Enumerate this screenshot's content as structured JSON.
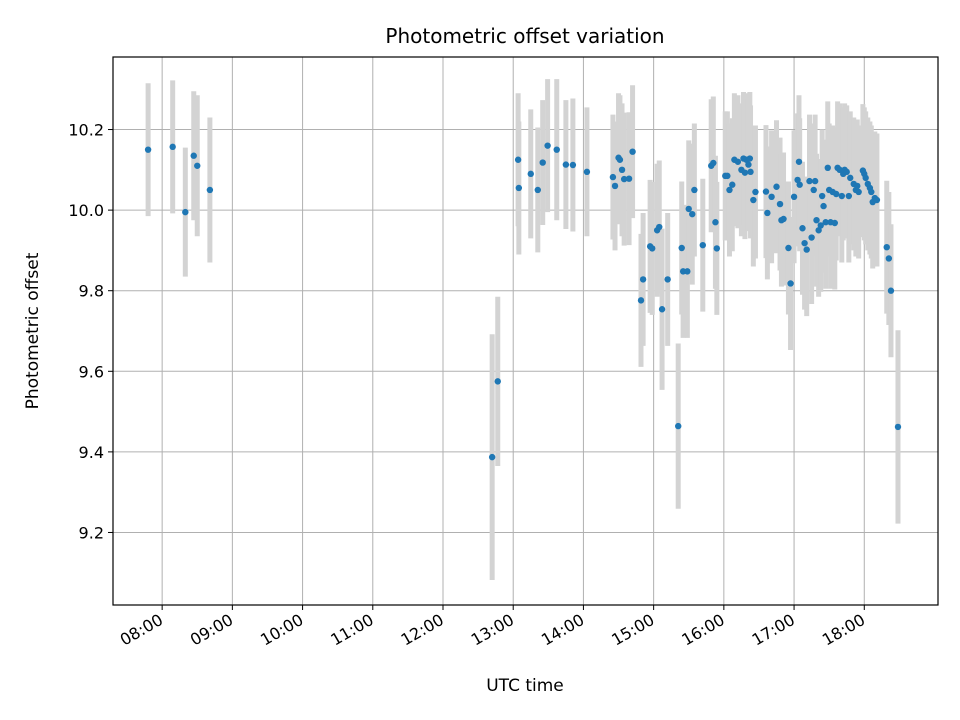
{
  "chart_data": {
    "type": "scatter",
    "title": "Photometric offset variation",
    "xlabel": "UTC time",
    "ylabel": "Photometric offset",
    "x_tick_labels": [
      "08:00",
      "09:00",
      "10:00",
      "11:00",
      "12:00",
      "13:00",
      "14:00",
      "15:00",
      "16:00",
      "17:00",
      "18:00"
    ],
    "y_tick_labels": [
      "9.2",
      "9.4",
      "9.6",
      "9.8",
      "10.0",
      "10.2"
    ],
    "x_ticks_hours": [
      8,
      9,
      10,
      11,
      12,
      13,
      14,
      15,
      16,
      17,
      18
    ],
    "y_ticks": [
      9.2,
      9.4,
      9.6,
      9.8,
      10.0,
      10.2
    ],
    "xlim_hours": [
      7.3,
      19.05
    ],
    "ylim": [
      9.02,
      10.38
    ],
    "grid": true,
    "colors": {
      "point": "#1f77b4",
      "errorbar": "#d3d3d3",
      "grid": "#b0b0b0"
    },
    "series": [
      {
        "points": [
          [
            7.8,
            10.15,
            0.165
          ],
          [
            8.15,
            10.157,
            0.165
          ],
          [
            8.33,
            9.995,
            0.16
          ],
          [
            8.45,
            10.135,
            0.16
          ],
          [
            8.5,
            10.11,
            0.175
          ],
          [
            8.68,
            10.05,
            0.18
          ],
          [
            12.7,
            9.387,
            0.305
          ],
          [
            12.78,
            9.575,
            0.21
          ],
          [
            13.07,
            10.125,
            0.165
          ],
          [
            13.08,
            10.055,
            0.165
          ],
          [
            13.25,
            10.09,
            0.16
          ],
          [
            13.35,
            10.05,
            0.155
          ],
          [
            13.42,
            10.118,
            0.155
          ],
          [
            13.49,
            10.16,
            0.165
          ],
          [
            13.62,
            10.15,
            0.175
          ],
          [
            13.75,
            10.113,
            0.16
          ],
          [
            13.85,
            10.112,
            0.165
          ],
          [
            14.05,
            10.095,
            0.16
          ],
          [
            14.42,
            10.082,
            0.155
          ],
          [
            14.45,
            10.06,
            0.16
          ],
          [
            14.5,
            10.13,
            0.16
          ],
          [
            14.52,
            10.125,
            0.16
          ],
          [
            14.55,
            10.1,
            0.165
          ],
          [
            14.58,
            10.077,
            0.165
          ],
          [
            14.65,
            10.078,
            0.165
          ],
          [
            14.7,
            10.145,
            0.165
          ],
          [
            14.82,
            9.776,
            0.165
          ],
          [
            14.85,
            9.828,
            0.165
          ],
          [
            14.95,
            9.91,
            0.165
          ],
          [
            14.98,
            9.905,
            0.165
          ],
          [
            15.05,
            9.95,
            0.165
          ],
          [
            15.08,
            9.958,
            0.165
          ],
          [
            15.12,
            9.754,
            0.2
          ],
          [
            15.2,
            9.828,
            0.165
          ],
          [
            15.35,
            9.464,
            0.205
          ],
          [
            15.4,
            9.906,
            0.165
          ],
          [
            15.42,
            9.848,
            0.165
          ],
          [
            15.48,
            9.848,
            0.165
          ],
          [
            15.5,
            10.003,
            0.17
          ],
          [
            15.55,
            9.99,
            0.175
          ],
          [
            15.58,
            10.05,
            0.165
          ],
          [
            15.7,
            9.913,
            0.165
          ],
          [
            15.82,
            10.11,
            0.165
          ],
          [
            15.85,
            10.117,
            0.165
          ],
          [
            15.88,
            9.97,
            0.165
          ],
          [
            15.9,
            9.905,
            0.165
          ],
          [
            16.02,
            10.085,
            0.16
          ],
          [
            16.05,
            10.085,
            0.16
          ],
          [
            16.08,
            10.05,
            0.165
          ],
          [
            16.12,
            10.063,
            0.165
          ],
          [
            16.15,
            10.125,
            0.165
          ],
          [
            16.2,
            10.12,
            0.165
          ],
          [
            16.25,
            10.1,
            0.165
          ],
          [
            16.28,
            10.128,
            0.165
          ],
          [
            16.3,
            10.093,
            0.165
          ],
          [
            16.32,
            10.125,
            0.165
          ],
          [
            16.35,
            10.113,
            0.165
          ],
          [
            16.37,
            10.128,
            0.165
          ],
          [
            16.38,
            10.095,
            0.165
          ],
          [
            16.42,
            10.025,
            0.165
          ],
          [
            16.45,
            10.045,
            0.165
          ],
          [
            16.6,
            10.046,
            0.165
          ],
          [
            16.62,
            9.993,
            0.165
          ],
          [
            16.68,
            10.033,
            0.165
          ],
          [
            16.75,
            10.058,
            0.165
          ],
          [
            16.8,
            10.015,
            0.165
          ],
          [
            16.82,
            9.975,
            0.165
          ],
          [
            16.85,
            9.978,
            0.165
          ],
          [
            16.92,
            9.906,
            0.165
          ],
          [
            16.95,
            9.818,
            0.165
          ],
          [
            17.0,
            10.033,
            0.165
          ],
          [
            17.05,
            10.075,
            0.165
          ],
          [
            17.07,
            10.12,
            0.165
          ],
          [
            17.08,
            10.063,
            0.165
          ],
          [
            17.12,
            9.955,
            0.165
          ],
          [
            17.15,
            9.918,
            0.165
          ],
          [
            17.18,
            9.902,
            0.165
          ],
          [
            17.22,
            10.072,
            0.165
          ],
          [
            17.25,
            9.932,
            0.165
          ],
          [
            17.28,
            10.05,
            0.165
          ],
          [
            17.3,
            10.072,
            0.165
          ],
          [
            17.32,
            9.975,
            0.165
          ],
          [
            17.35,
            9.95,
            0.165
          ],
          [
            17.38,
            9.962,
            0.165
          ],
          [
            17.4,
            10.035,
            0.165
          ],
          [
            17.42,
            10.01,
            0.165
          ],
          [
            17.45,
            9.97,
            0.165
          ],
          [
            17.48,
            10.105,
            0.165
          ],
          [
            17.5,
            10.05,
            0.165
          ],
          [
            17.52,
            9.97,
            0.165
          ],
          [
            17.55,
            10.045,
            0.165
          ],
          [
            17.58,
            9.968,
            0.165
          ],
          [
            17.6,
            10.04,
            0.165
          ],
          [
            17.62,
            10.105,
            0.165
          ],
          [
            17.65,
            10.1,
            0.165
          ],
          [
            17.68,
            10.035,
            0.165
          ],
          [
            17.7,
            10.09,
            0.165
          ],
          [
            17.72,
            10.1,
            0.165
          ],
          [
            17.75,
            10.095,
            0.165
          ],
          [
            17.78,
            10.035,
            0.165
          ],
          [
            17.8,
            10.08,
            0.165
          ],
          [
            17.85,
            10.065,
            0.165
          ],
          [
            17.88,
            10.05,
            0.165
          ],
          [
            17.9,
            10.06,
            0.165
          ],
          [
            17.92,
            10.045,
            0.165
          ],
          [
            17.98,
            10.098,
            0.165
          ],
          [
            18.0,
            10.09,
            0.165
          ],
          [
            18.02,
            10.08,
            0.165
          ],
          [
            18.05,
            10.065,
            0.165
          ],
          [
            18.08,
            10.055,
            0.165
          ],
          [
            18.1,
            10.045,
            0.165
          ],
          [
            18.12,
            10.02,
            0.165
          ],
          [
            18.15,
            10.03,
            0.165
          ],
          [
            18.18,
            10.025,
            0.165
          ],
          [
            18.32,
            9.908,
            0.165
          ],
          [
            18.35,
            9.88,
            0.165
          ],
          [
            18.38,
            9.8,
            0.165
          ],
          [
            18.48,
            9.462,
            0.24
          ]
        ]
      }
    ]
  }
}
